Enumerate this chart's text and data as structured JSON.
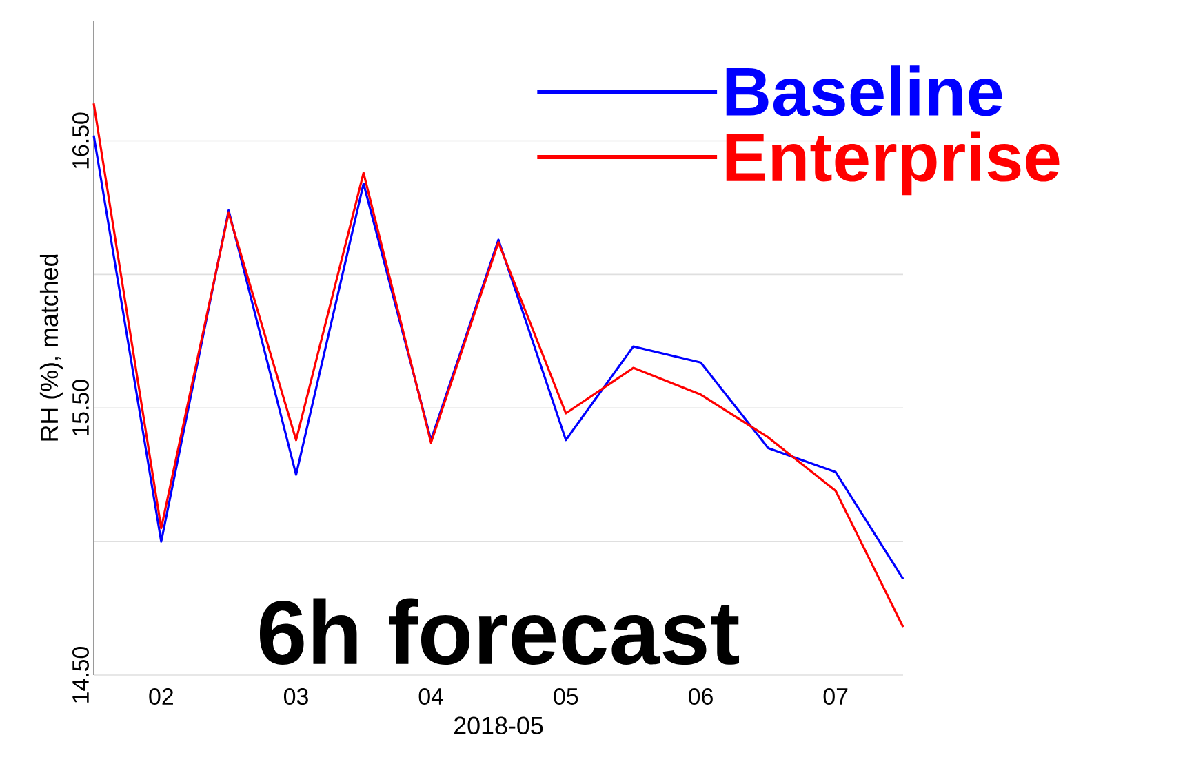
{
  "chart_data": {
    "type": "line",
    "xlabel": "2018-05",
    "ylabel": "RH (%), matched",
    "annotations": [
      "6h forecast"
    ],
    "x": [
      "2018-05-01T12:00",
      "2018-05-02T00:00",
      "2018-05-02T12:00",
      "2018-05-03T00:00",
      "2018-05-03T12:00",
      "2018-05-04T00:00",
      "2018-05-04T12:00",
      "2018-05-05T00:00",
      "2018-05-05T12:00",
      "2018-05-06T00:00",
      "2018-05-06T12:00",
      "2018-05-07T00:00",
      "2018-05-07T12:00"
    ],
    "xlim": [
      "2018-05-01T12:00",
      "2018-05-07T12:00"
    ],
    "xticks": [
      {
        "value": "2018-05-02",
        "label": "02"
      },
      {
        "value": "2018-05-03",
        "label": "03"
      },
      {
        "value": "2018-05-04",
        "label": "04"
      },
      {
        "value": "2018-05-05",
        "label": "05"
      },
      {
        "value": "2018-05-06",
        "label": "06"
      },
      {
        "value": "2018-05-07",
        "label": "07"
      }
    ],
    "ylim": [
      14.5,
      16.95
    ],
    "yticks": [
      {
        "value": 14.5,
        "label": "14.50"
      },
      {
        "value": 15,
        "label": null
      },
      {
        "value": 15.5,
        "label": "15.50"
      },
      {
        "value": 16,
        "label": null
      },
      {
        "value": 16.5,
        "label": "16.50"
      }
    ],
    "grid": "y",
    "legend": "top right",
    "marker": "none",
    "line_style": "solid",
    "series": [
      {
        "name": "Baseline",
        "color": "#0000ff",
        "values": [
          16.52,
          15.0,
          16.24,
          15.25,
          16.34,
          15.38,
          16.13,
          15.38,
          15.73,
          15.67,
          15.35,
          15.26,
          14.86
        ]
      },
      {
        "name": "Enterprise",
        "color": "#ff0000",
        "values": [
          16.64,
          15.05,
          16.23,
          15.38,
          16.38,
          15.37,
          16.12,
          15.48,
          15.65,
          15.55,
          15.39,
          15.19,
          14.68
        ]
      }
    ]
  }
}
